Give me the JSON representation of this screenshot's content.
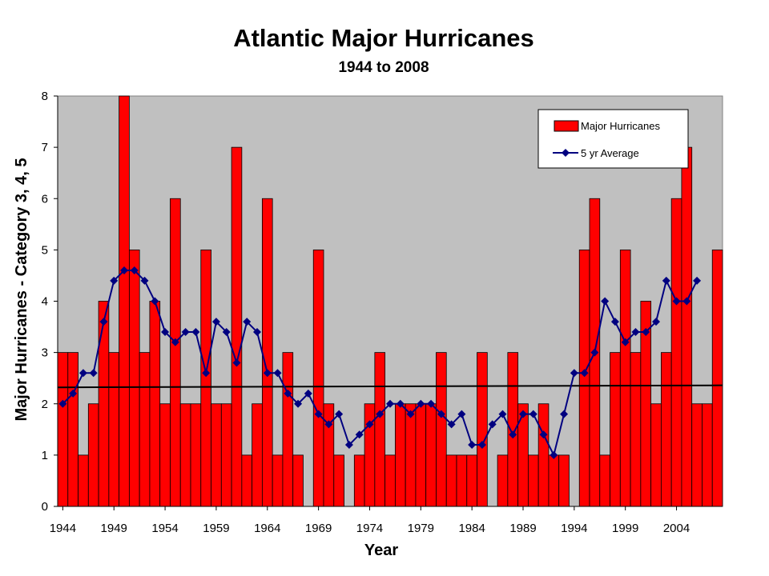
{
  "chart_data": {
    "type": "bar",
    "title": "Atlantic Major Hurricanes",
    "subtitle": "1944 to 2008",
    "xlabel": "Year",
    "ylabel": "Major Hurricanes - Category 3, 4, 5",
    "ylim": [
      0,
      8
    ],
    "yticks": [
      0,
      1,
      2,
      3,
      4,
      5,
      6,
      7,
      8
    ],
    "xticks": [
      "1944",
      "1949",
      "1954",
      "1959",
      "1964",
      "1969",
      "1974",
      "1979",
      "1984",
      "1989",
      "1994",
      "1999",
      "2004"
    ],
    "years": [
      1944,
      1945,
      1946,
      1947,
      1948,
      1949,
      1950,
      1951,
      1952,
      1953,
      1954,
      1955,
      1956,
      1957,
      1958,
      1959,
      1960,
      1961,
      1962,
      1963,
      1964,
      1965,
      1966,
      1967,
      1968,
      1969,
      1970,
      1971,
      1972,
      1973,
      1974,
      1975,
      1976,
      1977,
      1978,
      1979,
      1980,
      1981,
      1982,
      1983,
      1984,
      1985,
      1986,
      1987,
      1988,
      1989,
      1990,
      1991,
      1992,
      1993,
      1994,
      1995,
      1996,
      1997,
      1998,
      1999,
      2000,
      2001,
      2002,
      2003,
      2004,
      2005,
      2006,
      2007,
      2008
    ],
    "series": [
      {
        "name": "Major Hurricanes",
        "kind": "bar",
        "color": "#ff0000",
        "values": [
          3,
          3,
          1,
          2,
          4,
          3,
          8,
          5,
          3,
          4,
          2,
          6,
          2,
          2,
          5,
          2,
          2,
          7,
          1,
          2,
          6,
          1,
          3,
          1,
          0,
          5,
          2,
          1,
          0,
          1,
          2,
          3,
          1,
          2,
          2,
          2,
          2,
          3,
          1,
          1,
          1,
          3,
          0,
          1,
          3,
          2,
          1,
          2,
          1,
          1,
          0,
          5,
          6,
          1,
          3,
          5,
          3,
          4,
          2,
          3,
          6,
          7,
          2,
          2,
          5
        ]
      },
      {
        "name": "5 yr Average",
        "kind": "line",
        "color": "#000080",
        "marker": "diamond",
        "values": [
          2.0,
          2.2,
          2.6,
          2.6,
          3.6,
          4.4,
          4.6,
          4.6,
          4.4,
          4.0,
          3.4,
          3.2,
          3.4,
          3.4,
          2.6,
          3.6,
          3.4,
          2.8,
          3.6,
          3.4,
          2.6,
          2.6,
          2.2,
          2.0,
          2.2,
          1.8,
          1.6,
          1.8,
          1.2,
          1.4,
          1.6,
          1.8,
          2.0,
          2.0,
          1.8,
          2.0,
          2.0,
          1.8,
          1.6,
          1.8,
          1.2,
          1.2,
          1.6,
          1.8,
          1.4,
          1.8,
          1.8,
          1.4,
          1.0,
          1.8,
          2.6,
          2.6,
          3.0,
          4.0,
          3.6,
          3.2,
          3.4,
          3.4,
          3.6,
          4.4,
          4.0,
          4.0,
          4.4,
          null,
          null
        ]
      }
    ],
    "trendline": {
      "color": "#000000",
      "start": 2.32,
      "end": 2.36
    },
    "plot_background": "#c0c0c0",
    "grid": false,
    "legend_position": "top-right"
  }
}
